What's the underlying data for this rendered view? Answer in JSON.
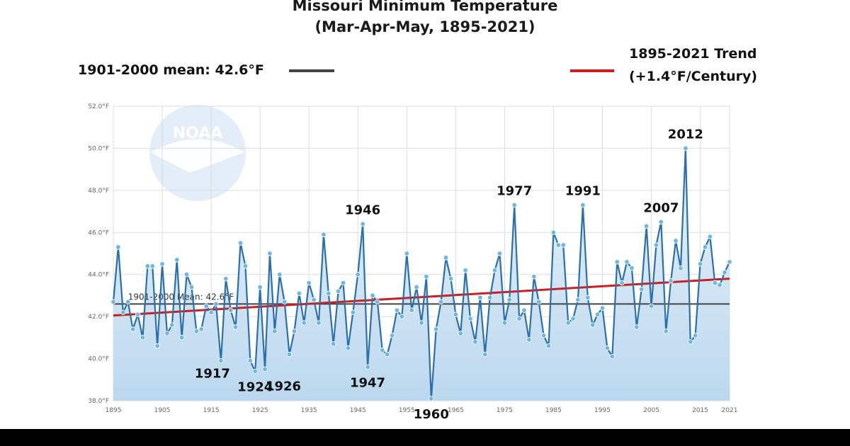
{
  "chart_data": {
    "type": "line",
    "title": "Missouri Minimum Temperature",
    "subtitle": "(Mar-Apr-May, 1895-2021)",
    "legend": {
      "mean_label": "1901-2000 mean: 42.6°F",
      "trend_label_1": "1895-2021 Trend",
      "trend_label_2": "(+1.4°F/Century)"
    },
    "mean_line_label": "1901-2000 Mean: 42.6°F",
    "mean_value": 42.6,
    "trend": {
      "start": [
        1895,
        42.05
      ],
      "end": [
        2021,
        43.8
      ]
    },
    "xlim": [
      1895,
      2021
    ],
    "ylim": [
      38,
      52
    ],
    "y_ticks": [
      {
        "value": 38,
        "label": "38.0°F"
      },
      {
        "value": 40,
        "label": "40.0°F"
      },
      {
        "value": 42,
        "label": "42.0°F"
      },
      {
        "value": 44,
        "label": "44.0°F"
      },
      {
        "value": 46,
        "label": "46.0°F"
      },
      {
        "value": 48,
        "label": "48.0°F"
      },
      {
        "value": 50,
        "label": "50.0°F"
      },
      {
        "value": 52,
        "label": "52.0°F"
      }
    ],
    "x_ticks": [
      {
        "value": 1895,
        "label": "1895"
      },
      {
        "value": 1905,
        "label": "1905"
      },
      {
        "value": 1915,
        "label": "1915"
      },
      {
        "value": 1925,
        "label": "1925"
      },
      {
        "value": 1935,
        "label": "1935"
      },
      {
        "value": 1945,
        "label": "1945"
      },
      {
        "value": 1955,
        "label": "1955"
      },
      {
        "value": 1965,
        "label": "1965"
      },
      {
        "value": 1975,
        "label": "1975"
      },
      {
        "value": 1985,
        "label": "1985"
      },
      {
        "value": 1995,
        "label": "1995"
      },
      {
        "value": 2005,
        "label": "2005"
      },
      {
        "value": 2015,
        "label": "2015"
      },
      {
        "value": 2021,
        "label": "2021"
      }
    ],
    "x": [
      1895,
      1896,
      1897,
      1898,
      1899,
      1900,
      1901,
      1902,
      1903,
      1904,
      1905,
      1906,
      1907,
      1908,
      1909,
      1910,
      1911,
      1912,
      1913,
      1914,
      1915,
      1916,
      1917,
      1918,
      1919,
      1920,
      1921,
      1922,
      1923,
      1924,
      1925,
      1926,
      1927,
      1928,
      1929,
      1930,
      1931,
      1932,
      1933,
      1934,
      1935,
      1936,
      1937,
      1938,
      1939,
      1940,
      1941,
      1942,
      1943,
      1944,
      1945,
      1946,
      1947,
      1948,
      1949,
      1950,
      1951,
      1952,
      1953,
      1954,
      1955,
      1956,
      1957,
      1958,
      1959,
      1960,
      1961,
      1962,
      1963,
      1964,
      1965,
      1966,
      1967,
      1968,
      1969,
      1970,
      1971,
      1972,
      1973,
      1974,
      1975,
      1976,
      1977,
      1978,
      1979,
      1980,
      1981,
      1982,
      1983,
      1984,
      1985,
      1986,
      1987,
      1988,
      1989,
      1990,
      1991,
      1992,
      1993,
      1994,
      1995,
      1996,
      1997,
      1998,
      1999,
      2000,
      2001,
      2002,
      2003,
      2004,
      2005,
      2006,
      2007,
      2008,
      2009,
      2010,
      2011,
      2012,
      2013,
      2014,
      2015,
      2016,
      2017,
      2018,
      2019,
      2020,
      2021
    ],
    "series": [
      {
        "values": [
          42.7,
          45.3,
          42.2,
          42.7,
          41.4,
          42.1,
          41.0,
          44.4,
          44.4,
          40.6,
          44.5,
          41.2,
          41.6,
          44.7,
          41.0,
          44.0,
          43.4,
          41.3,
          41.4,
          42.5,
          42.2,
          42.6,
          39.9,
          43.8,
          42.3,
          41.5,
          45.5,
          44.4,
          39.9,
          39.4,
          43.4,
          39.5,
          45.0,
          41.3,
          44.0,
          42.7,
          40.2,
          41.3,
          43.1,
          41.7,
          43.6,
          42.8,
          41.7,
          45.9,
          43.1,
          40.7,
          43.2,
          43.6,
          40.5,
          42.2,
          44.0,
          46.4,
          39.6,
          43.0,
          42.7,
          40.4,
          40.2,
          41.1,
          42.3,
          42.0,
          45.0,
          42.3,
          43.4,
          41.7,
          43.9,
          38.1,
          41.4,
          42.7,
          44.8,
          43.8,
          42.1,
          41.2,
          44.2,
          41.9,
          40.8,
          42.9,
          40.2,
          42.9,
          44.2,
          45.0,
          41.7,
          42.8,
          47.3,
          41.9,
          42.3,
          40.9,
          43.9,
          42.7,
          41.1,
          40.6,
          46.0,
          45.4,
          45.4,
          41.7,
          41.9,
          42.8,
          47.3,
          42.9,
          41.6,
          42.1,
          42.4,
          40.5,
          40.1,
          44.6,
          43.6,
          44.6,
          44.3,
          41.5,
          43.3,
          46.3,
          42.5,
          45.4,
          46.5,
          41.3,
          43.7,
          45.6,
          44.3,
          50.0,
          40.8,
          41.1,
          44.5,
          45.3,
          45.8,
          43.6,
          43.5,
          44.1,
          44.6
        ]
      }
    ],
    "annotations": [
      {
        "text": "1917",
        "x": 1917,
        "y": 39.9,
        "pos": "below-left"
      },
      {
        "text": "1924",
        "x": 1924,
        "y": 39.4,
        "pos": "below"
      },
      {
        "text": "1926",
        "x": 1926,
        "y": 39.5,
        "pos": "below-right"
      },
      {
        "text": "1946",
        "x": 1946,
        "y": 46.4,
        "pos": "above"
      },
      {
        "text": "1947",
        "x": 1947,
        "y": 39.6,
        "pos": "below"
      },
      {
        "text": "1960",
        "x": 1960,
        "y": 38.1,
        "pos": "below"
      },
      {
        "text": "1977",
        "x": 1977,
        "y": 47.3,
        "pos": "above"
      },
      {
        "text": "1991",
        "x": 1991,
        "y": 47.3,
        "pos": "above"
      },
      {
        "text": "2007",
        "x": 2007,
        "y": 46.5,
        "pos": "above"
      },
      {
        "text": "2012",
        "x": 2012,
        "y": 50.0,
        "pos": "above"
      }
    ],
    "logo_text": "NOAA",
    "colors": {
      "series": "#2a6fae",
      "marker": "#6cb7e6",
      "mean": "#444444",
      "trend": "#cc1f1f",
      "area": "#cfe3f4",
      "grid": "#dddddd"
    }
  }
}
